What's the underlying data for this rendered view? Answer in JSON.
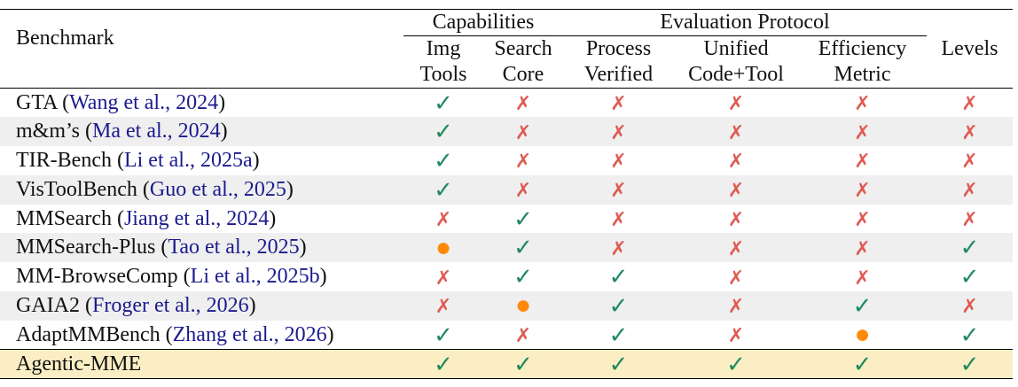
{
  "header": {
    "benchmark": "Benchmark",
    "groups": [
      {
        "label": "Capabilities",
        "columns": [
          {
            "line1": "Img",
            "line2": "Tools"
          },
          {
            "line1": "Search",
            "line2": "Core"
          }
        ]
      },
      {
        "label": "Evaluation Protocol",
        "columns": [
          {
            "line1": "Process",
            "line2": "Verified"
          },
          {
            "line1": "Unified",
            "line2": "Code+Tool"
          },
          {
            "line1": "Efficiency",
            "line2": "Metric"
          }
        ]
      }
    ],
    "levels": "Levels"
  },
  "rows": [
    {
      "name": "GTA (",
      "cite": "Wang et al., 2024",
      "end": ")",
      "marks": [
        "✓",
        "✗",
        "✗",
        "✗",
        "✗",
        "✗"
      ]
    },
    {
      "name": "m&m’s (",
      "cite": "Ma et al., 2024",
      "end": ")",
      "marks": [
        "✓",
        "✗",
        "✗",
        "✗",
        "✗",
        "✗"
      ]
    },
    {
      "name": "TIR-Bench (",
      "cite": "Li et al., 2025a",
      "end": ")",
      "marks": [
        "✓",
        "✗",
        "✗",
        "✗",
        "✗",
        "✗"
      ]
    },
    {
      "name": "VisToolBench (",
      "cite": "Guo et al., 2025",
      "end": ")",
      "marks": [
        "✓",
        "✗",
        "✗",
        "✗",
        "✗",
        "✗"
      ]
    },
    {
      "name": "MMSearch (",
      "cite": "Jiang et al., 2024",
      "end": ")",
      "marks": [
        "✗",
        "✓",
        "✗",
        "✗",
        "✗",
        "✗"
      ]
    },
    {
      "name": "MMSearch-Plus (",
      "cite": "Tao et al., 2025",
      "end": ")",
      "marks": [
        "●",
        "✓",
        "✗",
        "✗",
        "✗",
        "✓"
      ]
    },
    {
      "name": "MM-BrowseComp (",
      "cite": "Li et al., 2025b",
      "end": ")",
      "marks": [
        "✗",
        "✓",
        "✓",
        "✗",
        "✗",
        "✓"
      ]
    },
    {
      "name": "GAIA2 (",
      "cite": "Froger et al., 2026",
      "end": ")",
      "marks": [
        "✗",
        "●",
        "✓",
        "✗",
        "✓",
        "✗"
      ]
    },
    {
      "name": "AdaptMMBench (",
      "cite": "Zhang et al., 2026",
      "end": ")",
      "marks": [
        "✓",
        "✗",
        "✓",
        "✗",
        "●",
        "✓"
      ]
    },
    {
      "name": "Agentic-MME",
      "marks": [
        "✓",
        "✓",
        "✓",
        "✓",
        "✓",
        "✓"
      ]
    }
  ]
}
